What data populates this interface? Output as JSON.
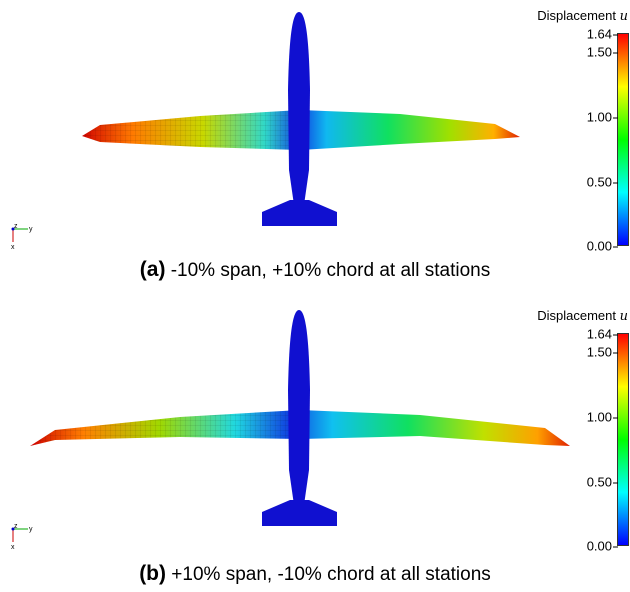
{
  "figure": {
    "panels": [
      {
        "label": "(a)",
        "caption": "-10% span, +10% chord at all stations",
        "colorbar": {
          "title": "Displacement",
          "symbol": "u",
          "ticks": [
            "1.64",
            "1.50",
            "1.00",
            "0.50",
            "0.00"
          ],
          "tick_values": [
            1.64,
            1.5,
            1.0,
            0.5,
            0.0
          ],
          "range": [
            0.0,
            1.64
          ],
          "colormap": [
            "#0000ff",
            "#00ffff",
            "#00ff00",
            "#ffff00",
            "#ff0000"
          ]
        },
        "axes_triad": {
          "z": "z",
          "y": "y",
          "x": "x"
        }
      },
      {
        "label": "(b)",
        "caption": "+10% span, -10% chord at all stations",
        "colorbar": {
          "title": "Displacement",
          "symbol": "u",
          "ticks": [
            "1.64",
            "1.50",
            "1.00",
            "0.50",
            "0.00"
          ],
          "tick_values": [
            1.64,
            1.5,
            1.0,
            0.5,
            0.0
          ],
          "range": [
            0.0,
            1.64
          ],
          "colormap": [
            "#0000ff",
            "#00ffff",
            "#00ff00",
            "#ffff00",
            "#ff0000"
          ]
        },
        "axes_triad": {
          "z": "z",
          "y": "y",
          "x": "x"
        }
      }
    ],
    "fuselage_color": "#1010d0"
  }
}
